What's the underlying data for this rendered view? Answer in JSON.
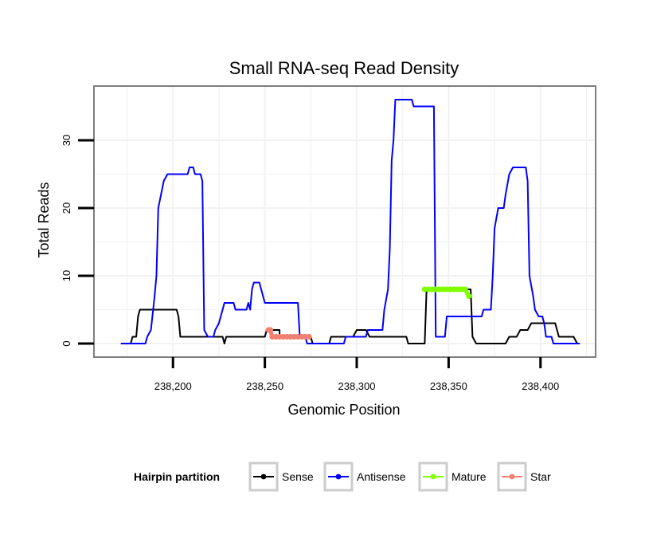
{
  "chart_data": {
    "type": "line",
    "title": "Small RNA-seq Read Density",
    "xlabel": "Genomic Position",
    "ylabel": "Total Reads",
    "xlim": [
      238157,
      238430
    ],
    "ylim": [
      -2,
      38
    ],
    "x_ticks": [
      238200,
      238250,
      238300,
      238350,
      238400
    ],
    "x_tick_labels": [
      "238,200",
      "238,250",
      "238,300",
      "238,350",
      "238,400"
    ],
    "y_ticks": [
      0,
      10,
      20,
      30
    ],
    "y_tick_labels": [
      "0",
      "10",
      "20",
      "30"
    ],
    "grid": true,
    "legend": {
      "title": "Hairpin partition",
      "placement": "bottom",
      "entries": [
        "Sense",
        "Antisense",
        "Mature",
        "Star"
      ]
    },
    "series": [
      {
        "name": "Sense",
        "color": "#000000",
        "points": [
          [
            238172,
            0
          ],
          [
            238177,
            0
          ],
          [
            238178,
            1
          ],
          [
            238180,
            1
          ],
          [
            238181,
            4
          ],
          [
            238182,
            5
          ],
          [
            238202,
            5
          ],
          [
            238203,
            4
          ],
          [
            238204,
            1
          ],
          [
            238227,
            1
          ],
          [
            238228,
            0
          ],
          [
            238229,
            1
          ],
          [
            238250,
            1
          ],
          [
            238251,
            2
          ],
          [
            238258,
            2
          ],
          [
            238258,
            1
          ],
          [
            238275,
            1
          ],
          [
            238276,
            0
          ],
          [
            238285,
            0
          ],
          [
            238286,
            1
          ],
          [
            238298,
            1
          ],
          [
            238300,
            2
          ],
          [
            238305,
            2
          ],
          [
            238307,
            1
          ],
          [
            238327,
            1
          ],
          [
            238328,
            0
          ],
          [
            238337,
            0
          ],
          [
            238338,
            8
          ],
          [
            238362,
            8
          ],
          [
            238363,
            1
          ],
          [
            238365,
            0
          ],
          [
            238381,
            0
          ],
          [
            238383,
            1
          ],
          [
            238387,
            1
          ],
          [
            238389,
            2
          ],
          [
            238393,
            2
          ],
          [
            238395,
            3
          ],
          [
            238408,
            3
          ],
          [
            238410,
            1
          ],
          [
            238418,
            1
          ],
          [
            238420,
            0
          ],
          [
            238421,
            0
          ]
        ]
      },
      {
        "name": "Antisense",
        "color": "#0000ff",
        "points": [
          [
            238172,
            0
          ],
          [
            238178,
            0
          ],
          [
            238185,
            0
          ],
          [
            238186,
            1
          ],
          [
            238188,
            2
          ],
          [
            238190,
            7
          ],
          [
            238191,
            10
          ],
          [
            238192,
            20
          ],
          [
            238195,
            24
          ],
          [
            238197,
            25
          ],
          [
            238208,
            25
          ],
          [
            238209,
            26
          ],
          [
            238211,
            26
          ],
          [
            238212,
            25
          ],
          [
            238215,
            25
          ],
          [
            238216,
            24
          ],
          [
            238217,
            2
          ],
          [
            238219,
            1
          ],
          [
            238222,
            1
          ],
          [
            238223,
            2
          ],
          [
            238225,
            3
          ],
          [
            238227,
            5
          ],
          [
            238228,
            6
          ],
          [
            238233,
            6
          ],
          [
            238234,
            5
          ],
          [
            238240,
            5
          ],
          [
            238241,
            6
          ],
          [
            238242,
            5
          ],
          [
            238243,
            8
          ],
          [
            238244,
            9
          ],
          [
            238247,
            9
          ],
          [
            238248,
            8
          ],
          [
            238250,
            6
          ],
          [
            238268,
            6
          ],
          [
            238269,
            1
          ],
          [
            238272,
            1
          ],
          [
            238273,
            0
          ],
          [
            238293,
            0
          ],
          [
            238294,
            1
          ],
          [
            238305,
            1
          ],
          [
            238306,
            2
          ],
          [
            238314,
            2
          ],
          [
            238315,
            5
          ],
          [
            238317,
            8
          ],
          [
            238318,
            14
          ],
          [
            238319,
            27
          ],
          [
            238320,
            30
          ],
          [
            238321,
            36
          ],
          [
            238330,
            36
          ],
          [
            238331,
            35
          ],
          [
            238342,
            35
          ],
          [
            238343,
            1
          ],
          [
            238348,
            1
          ],
          [
            238349,
            4
          ],
          [
            238368,
            4
          ],
          [
            238369,
            5
          ],
          [
            238373,
            5
          ],
          [
            238374,
            10
          ],
          [
            238375,
            17
          ],
          [
            238377,
            20
          ],
          [
            238380,
            20
          ],
          [
            238381,
            22
          ],
          [
            238383,
            25
          ],
          [
            238385,
            26
          ],
          [
            238392,
            26
          ],
          [
            238393,
            24
          ],
          [
            238394,
            10
          ],
          [
            238396,
            7
          ],
          [
            238397,
            5
          ],
          [
            238399,
            4
          ],
          [
            238401,
            4
          ],
          [
            238402,
            3
          ],
          [
            238403,
            1
          ],
          [
            238406,
            1
          ],
          [
            238407,
            0
          ],
          [
            238421,
            0
          ]
        ]
      },
      {
        "name": "Mature",
        "color": "#80ff00",
        "points": [
          [
            238337,
            8
          ],
          [
            238339,
            8
          ],
          [
            238341,
            8
          ],
          [
            238343,
            8
          ],
          [
            238345,
            8
          ],
          [
            238347,
            8
          ],
          [
            238349,
            8
          ],
          [
            238351,
            8
          ],
          [
            238353,
            8
          ],
          [
            238355,
            8
          ],
          [
            238357,
            8
          ],
          [
            238359,
            8
          ],
          [
            238361,
            7
          ]
        ]
      },
      {
        "name": "Star",
        "color": "#f08070",
        "points": [
          [
            238252,
            2
          ],
          [
            238253,
            2
          ],
          [
            238254,
            1
          ],
          [
            238256,
            1
          ],
          [
            238258,
            1
          ],
          [
            238260,
            1
          ],
          [
            238262,
            1
          ],
          [
            238264,
            1
          ],
          [
            238266,
            1
          ],
          [
            238268,
            1
          ],
          [
            238270,
            1
          ],
          [
            238272,
            1
          ],
          [
            238274,
            1
          ]
        ]
      }
    ]
  }
}
